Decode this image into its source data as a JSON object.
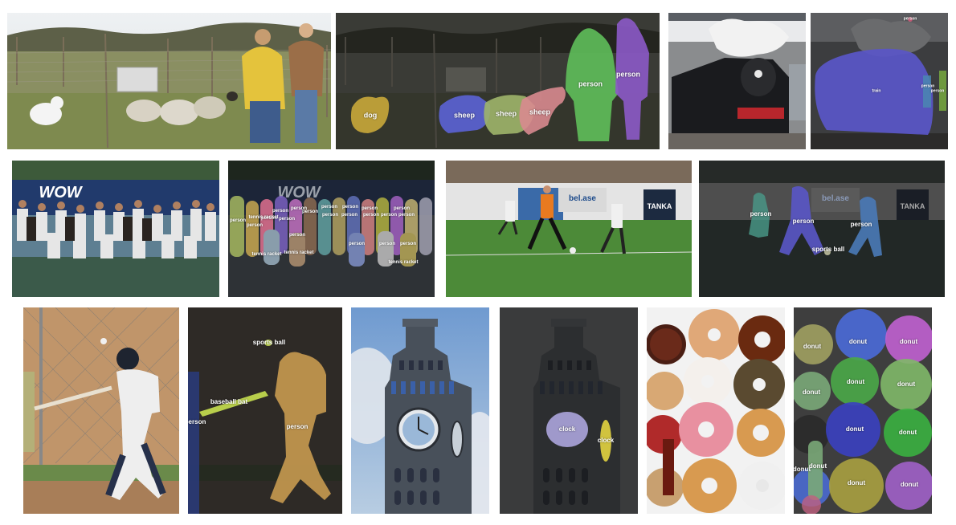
{
  "figure": {
    "rows": [
      {
        "pairs": [
          {
            "name": "sheep-and-dog-field",
            "labels": [
              "dog",
              "sheep",
              "sheep",
              "sheep",
              "person",
              "person"
            ]
          },
          {
            "name": "steam-train-station",
            "labels": [
              "person",
              "train",
              "person",
              "person"
            ]
          }
        ]
      },
      {
        "pairs": [
          {
            "name": "tennis-team-group-photo",
            "labels": [
              "person",
              "person",
              "person",
              "person",
              "person",
              "person",
              "person",
              "person",
              "person",
              "person",
              "person",
              "person",
              "person",
              "person",
              "person",
              "person",
              "person",
              "person",
              "person",
              "person",
              "tennis racket",
              "tennis racket",
              "tennis racket",
              "tennis racket"
            ]
          },
          {
            "name": "soccer-match",
            "labels": [
              "person",
              "person",
              "person",
              "sports ball"
            ]
          }
        ]
      },
      {
        "pairs": [
          {
            "name": "baseball-batter",
            "labels": [
              "sports ball",
              "baseball bat",
              "person",
              "person"
            ]
          },
          {
            "name": "clock-tower",
            "labels": [
              "clock",
              "clock"
            ]
          },
          {
            "name": "donut-box",
            "labels": [
              "donut",
              "donut",
              "donut",
              "donut",
              "donut",
              "donut",
              "donut",
              "donut",
              "donut",
              "donut",
              "donut",
              "donut"
            ]
          }
        ]
      }
    ],
    "mask_colors": {
      "dog": "#c9a93a",
      "sheep_1": "#5b63d6",
      "sheep_2": "#9fb56a",
      "sheep_3": "#d8898f",
      "person_green": "#5fbf5a",
      "person_purple": "#8c5ac8",
      "train": "#5a56c8",
      "person_orange": "#c89a50",
      "baseball_bat": "#c8e050",
      "clock_1": "#a9a3d9",
      "clock_2": "#e0d040"
    }
  }
}
